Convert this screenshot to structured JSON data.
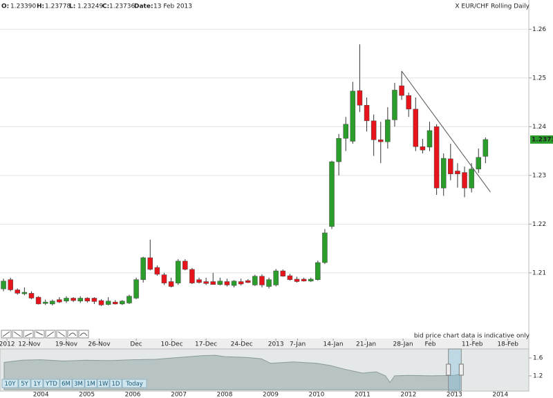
{
  "header": {
    "items": [
      {
        "label": "O:",
        "value": "1.23390"
      },
      {
        "label": "H:",
        "value": "1.23778"
      },
      {
        "label": "L:",
        "value": "1.23249"
      },
      {
        "label": "C:",
        "value": "1.23736"
      },
      {
        "label": "Date:",
        "value": "13 Feb 2013"
      }
    ]
  },
  "navigator_buttons": [
    "10Y",
    "5Y",
    "1Y",
    "YTD",
    "6M",
    "3M",
    "1M",
    "1W",
    "1D",
    "Today"
  ],
  "chart_data": [
    {
      "type": "candlestick",
      "title": "X EUR/CHF Rolling Daily",
      "note": "bid price chart data is indicative only",
      "up_color": "#2a9d2a",
      "down_color": "#e8141b",
      "grid": true,
      "xlim": [
        -0.5,
        75.2
      ],
      "ylim": [
        1.1965,
        1.266
      ],
      "yticks": [
        1.21,
        1.22,
        1.23,
        1.24,
        1.25,
        1.26
      ],
      "xticks": [
        {
          "value": 0.5,
          "label": "2012"
        },
        {
          "value": 3.7,
          "label": "12-Nov"
        },
        {
          "value": 9.0,
          "label": "19-Nov"
        },
        {
          "value": 13.7,
          "label": "26-Nov"
        },
        {
          "value": 19.0,
          "label": "Dec"
        },
        {
          "value": 24.1,
          "label": "10-Dec"
        },
        {
          "value": 29.0,
          "label": "17-Dec"
        },
        {
          "value": 34.1,
          "label": "24-Dec"
        },
        {
          "value": 39.0,
          "label": "2013"
        },
        {
          "value": 42.1,
          "label": "7-Jan"
        },
        {
          "value": 47.2,
          "label": "14-Jan"
        },
        {
          "value": 51.9,
          "label": "21-Jan"
        },
        {
          "value": 57.2,
          "label": "28-Jan"
        },
        {
          "value": 61.1,
          "label": "Feb"
        },
        {
          "value": 67.1,
          "label": "11-Feb"
        },
        {
          "value": 72.2,
          "label": "18-Feb"
        }
      ],
      "open": [
        1.2067,
        1.2086,
        1.2065,
        1.2057,
        1.2058,
        1.205,
        1.2037,
        1.2036,
        1.2045,
        1.2042,
        1.2048,
        1.2042,
        1.2048,
        1.2048,
        1.2043,
        1.2035,
        1.204,
        1.2036,
        1.2038,
        1.2048,
        1.2086,
        1.2131,
        1.2111,
        1.2096,
        1.2082,
        1.2079,
        1.2124,
        1.2107,
        1.2086,
        1.2082,
        1.2082,
        1.2076,
        1.2082,
        1.2074,
        1.2082,
        1.2084,
        1.2075,
        1.2093,
        1.2072,
        1.2075,
        1.2104,
        1.2094,
        1.2087,
        1.2087,
        1.2083,
        1.2086,
        1.2121,
        1.2195,
        1.2328,
        1.2376,
        1.237,
        1.2474,
        1.2444,
        1.2412,
        1.2373,
        1.2369,
        1.2414,
        1.2484,
        1.2464,
        1.2436,
        1.2359,
        1.2358,
        1.24,
        1.2274,
        1.2334,
        1.2309,
        1.2306,
        1.2274,
        1.2313,
        1.2339
      ],
      "high": [
        1.2088,
        1.209,
        1.2068,
        1.207,
        1.2062,
        1.2052,
        1.2045,
        1.2045,
        1.205,
        1.2052,
        1.205,
        1.2052,
        1.205,
        1.205,
        1.2046,
        1.205,
        1.2044,
        1.2044,
        1.2055,
        1.209,
        1.2133,
        1.2168,
        1.2115,
        1.21,
        1.209,
        1.2128,
        1.2128,
        1.211,
        1.209,
        1.209,
        1.21,
        1.209,
        1.2088,
        1.2085,
        1.2088,
        1.2087,
        1.2096,
        1.2097,
        1.209,
        1.2108,
        1.2107,
        1.2098,
        1.2092,
        1.209,
        1.209,
        1.2125,
        1.219,
        1.233,
        1.2385,
        1.242,
        1.2492,
        1.2569,
        1.246,
        1.2425,
        1.241,
        1.244,
        1.249,
        1.2514,
        1.247,
        1.246,
        1.2375,
        1.241,
        1.2405,
        1.2345,
        1.2365,
        1.2325,
        1.2318,
        1.2325,
        1.2355,
        1.23778
      ],
      "low": [
        1.2062,
        1.2062,
        1.2055,
        1.2054,
        1.2046,
        1.2035,
        1.2034,
        1.2033,
        1.2038,
        1.2038,
        1.204,
        1.2038,
        1.2039,
        1.2036,
        1.2032,
        1.2033,
        1.2035,
        1.2034,
        1.2036,
        1.2046,
        1.208,
        1.2105,
        1.2094,
        1.2075,
        1.207,
        1.2075,
        1.2105,
        1.2077,
        1.2078,
        1.2075,
        1.2076,
        1.2074,
        1.2072,
        1.207,
        1.2074,
        1.2079,
        1.2073,
        1.207,
        1.2068,
        1.2072,
        1.2092,
        1.2084,
        1.208,
        1.2082,
        1.2081,
        1.2084,
        1.2118,
        1.219,
        1.23,
        1.235,
        1.2365,
        1.243,
        1.239,
        1.234,
        1.2325,
        1.2355,
        1.24,
        1.2455,
        1.242,
        1.235,
        1.2345,
        1.235,
        1.226,
        1.2258,
        1.229,
        1.2275,
        1.2255,
        1.2265,
        1.2305,
        1.23249
      ],
      "close": [
        1.2083,
        1.2065,
        1.2058,
        1.206,
        1.2048,
        1.2036,
        1.204,
        1.2042,
        1.204,
        1.2048,
        1.2043,
        1.2048,
        1.2042,
        1.2041,
        1.2034,
        1.2042,
        1.2036,
        1.2042,
        1.2052,
        1.2086,
        1.2131,
        1.2107,
        1.2097,
        1.2079,
        1.2072,
        1.2124,
        1.2107,
        1.2079,
        1.208,
        1.2078,
        1.2076,
        1.2083,
        1.2075,
        1.2083,
        1.2077,
        1.208,
        1.2093,
        1.2075,
        1.2086,
        1.2104,
        1.2093,
        1.2086,
        1.2082,
        1.2083,
        1.2087,
        1.2121,
        1.2182,
        1.2328,
        1.2376,
        1.2405,
        1.2473,
        1.2444,
        1.2412,
        1.2373,
        1.2369,
        1.2414,
        1.2475,
        1.2464,
        1.2436,
        1.2359,
        1.2352,
        1.2392,
        1.2274,
        1.2335,
        1.2303,
        1.2303,
        1.2274,
        1.2313,
        1.2337,
        1.23736
      ],
      "trendline": {
        "x": [
          57,
          69.7
        ],
        "y": [
          1.2514,
          1.2266
        ]
      }
    },
    {
      "type": "area",
      "color": "#8a9a9a",
      "xlim": [
        2003.11,
        2014.62
      ],
      "ylim": [
        0.89,
        1.77
      ],
      "yticks": [
        1.6,
        1.2
      ],
      "xticks": [
        2004,
        2005,
        2006,
        2007,
        2008,
        2009,
        2010,
        2011,
        2012,
        2013,
        2014
      ],
      "selection": [
        2012.87,
        2013.15
      ],
      "x": [
        2003.2,
        2003.6,
        2004,
        2004.5,
        2005,
        2005.5,
        2006,
        2006.5,
        2007,
        2007.5,
        2007.8,
        2008,
        2008.5,
        2008.8,
        2009,
        2009.5,
        2010,
        2010.3,
        2010.6,
        2011,
        2011.3,
        2011.5,
        2011.6,
        2011.7,
        2012,
        2012.5,
        2013,
        2013.12
      ],
      "values": [
        1.5,
        1.55,
        1.56,
        1.53,
        1.55,
        1.54,
        1.56,
        1.57,
        1.61,
        1.65,
        1.66,
        1.63,
        1.61,
        1.58,
        1.48,
        1.51,
        1.48,
        1.43,
        1.35,
        1.26,
        1.29,
        1.2,
        1.05,
        1.2,
        1.21,
        1.2,
        1.21,
        1.237
      ]
    }
  ]
}
